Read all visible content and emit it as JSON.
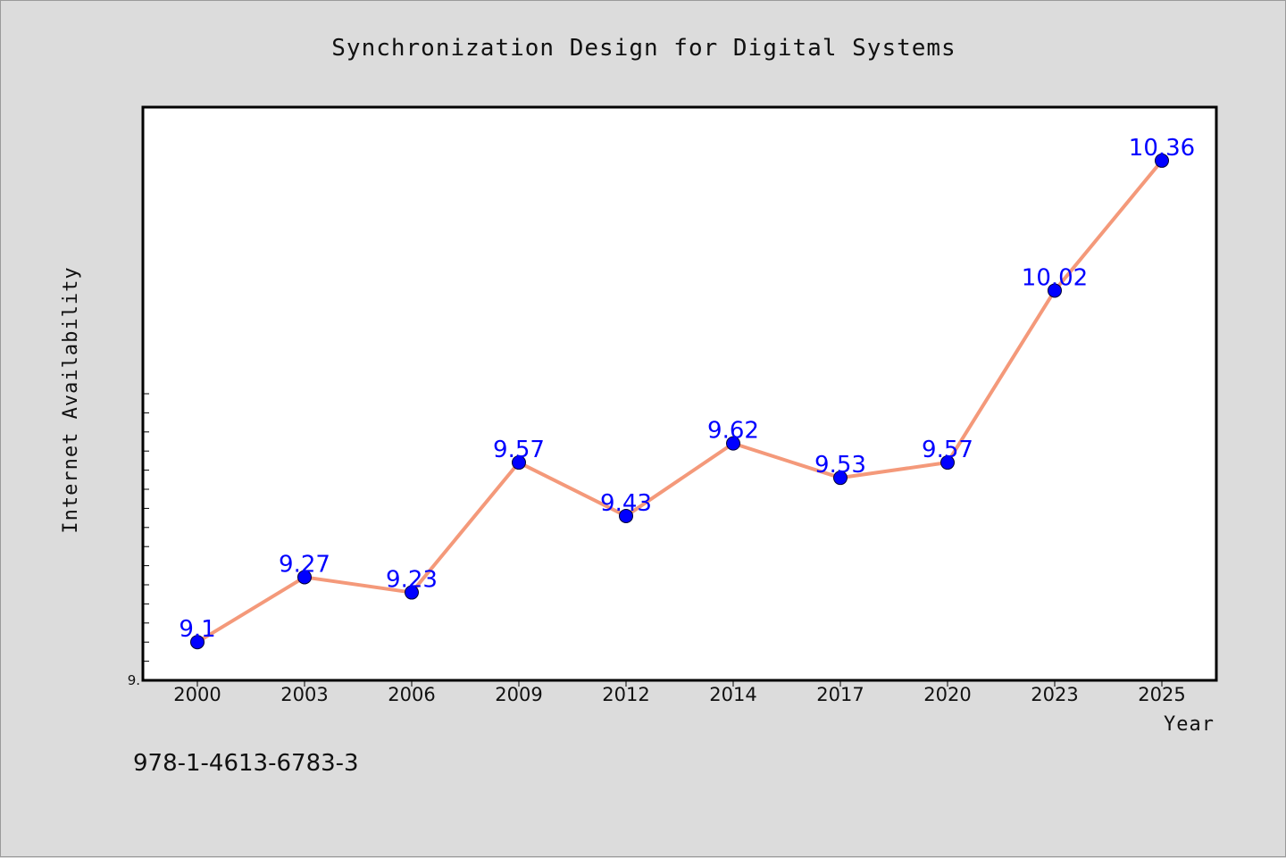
{
  "chart_data": {
    "type": "line",
    "title": "Synchronization Design for Digital Systems",
    "xlabel": "Year",
    "ylabel": "Internet Availability",
    "categories": [
      "2000",
      "2003",
      "2006",
      "2009",
      "2012",
      "2014",
      "2017",
      "2020",
      "2023",
      "2025"
    ],
    "values": [
      9.1,
      9.27,
      9.23,
      9.57,
      9.43,
      9.62,
      9.53,
      9.57,
      10.02,
      10.36
    ],
    "data_labels": [
      "9.1",
      "9.27",
      "9.23",
      "9.57",
      "9.43",
      "9.62",
      "9.53",
      "9.57",
      "10.02",
      "10.36"
    ],
    "y_tick_labels": [
      "9."
    ],
    "ylim": [
      9.0,
      10.5
    ],
    "grid": false,
    "line_color": "#f4997a",
    "marker_color": "#0000ff",
    "label_color": "#0000ff",
    "background": "#dcdcdc",
    "plot_background": "#ffffff"
  },
  "footer": {
    "isbn": "978-1-4613-6783-3"
  }
}
